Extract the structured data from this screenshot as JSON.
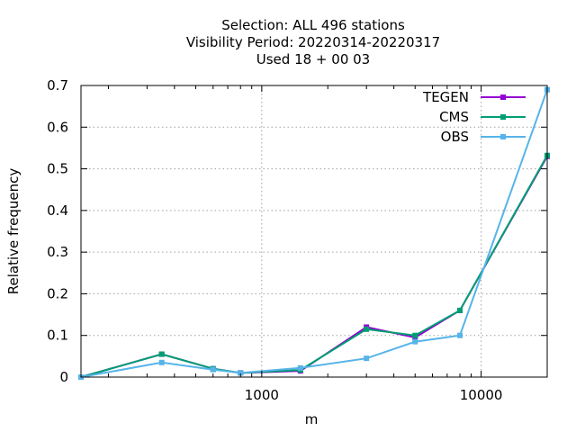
{
  "chart_data": {
    "type": "line",
    "title_lines": [
      "Selection: ALL     496 stations",
      "Visibility  Period: 20220314-20220317",
      "Used  18 + 00 03"
    ],
    "xlabel": "m",
    "ylabel": "Relative frequency",
    "x_scale": "log",
    "xlim": [
      150,
      20000
    ],
    "ylim": [
      0,
      0.7
    ],
    "x_ticks": [
      1000,
      10000
    ],
    "x_tick_labels": [
      "1000",
      "10000"
    ],
    "y_ticks": [
      0,
      0.1,
      0.2,
      0.3,
      0.4,
      0.5,
      0.6,
      0.7
    ],
    "y_tick_labels": [
      "0",
      "0.1",
      "0.2",
      "0.3",
      "0.4",
      "0.5",
      "0.6",
      "0.7"
    ],
    "grid": true,
    "legend_position": "top-right",
    "x": [
      150,
      350,
      600,
      800,
      1500,
      3000,
      5000,
      8000,
      20000
    ],
    "series": [
      {
        "name": "TEGEN",
        "color": "#9400d3",
        "values": [
          0.0,
          0.055,
          0.02,
          0.01,
          0.015,
          0.12,
          0.095,
          0.16,
          0.53
        ]
      },
      {
        "name": "CMS",
        "color": "#009e73",
        "values": [
          0.0,
          0.055,
          0.02,
          0.01,
          0.017,
          0.115,
          0.1,
          0.16,
          0.532
        ]
      },
      {
        "name": "OBS",
        "color": "#56b4e9",
        "values": [
          0.0,
          0.035,
          0.018,
          0.01,
          0.022,
          0.045,
          0.085,
          0.1,
          0.69
        ]
      }
    ]
  }
}
